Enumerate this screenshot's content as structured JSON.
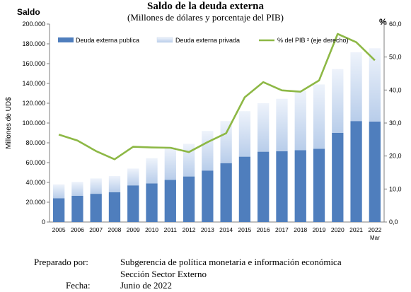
{
  "chart_data": {
    "type": "bar",
    "title": "Saldo de la deuda externa",
    "subtitle": "(Millones  de dólares y porcentaje del PIB)",
    "corner_label": "Saldo",
    "ylabel": "Millones de UD$",
    "y2label": "%",
    "categories": [
      "2005",
      "2006",
      "2007",
      "2008",
      "2009",
      "2010",
      "2011",
      "2012",
      "2013",
      "2014",
      "2015",
      "2016",
      "2017",
      "2018",
      "2019",
      "2020",
      "2021",
      "2022"
    ],
    "last_category_sublabel": "Mar",
    "ylim": [
      0,
      200000
    ],
    "yticks": [
      "0",
      "20.000",
      "40.000",
      "60.000",
      "80.000",
      "100.000",
      "120.000",
      "140.000",
      "160.000",
      "180.000",
      "200.000"
    ],
    "y2lim": [
      0,
      60
    ],
    "y2ticks": [
      "0,0",
      "10,0",
      "20,0",
      "30,0",
      "40,0",
      "50,0",
      "60,0"
    ],
    "grid": false,
    "legend_position": "top",
    "stacked": true,
    "series": [
      {
        "name": "Deuda externa publica",
        "kind": "bar",
        "axis": "left",
        "color": "#4f7ebd",
        "values": [
          24000,
          26500,
          28500,
          30000,
          37000,
          39000,
          42500,
          46000,
          52000,
          59500,
          66000,
          71000,
          71500,
          72500,
          74000,
          90000,
          102000,
          101500
        ]
      },
      {
        "name": "Deuda externa privada",
        "kind": "bar",
        "axis": "left",
        "color": "#b8cdea",
        "values": [
          14000,
          14000,
          15500,
          16500,
          17000,
          25500,
          33000,
          33000,
          40000,
          42500,
          46000,
          49000,
          53000,
          60000,
          65000,
          64500,
          69500,
          74000
        ]
      },
      {
        "name": "% del PIB ² (eje derecho)",
        "kind": "line",
        "axis": "right",
        "color": "#8db845",
        "values": [
          26.5,
          24.7,
          21.5,
          19.0,
          22.8,
          22.6,
          22.5,
          21.2,
          24.2,
          26.9,
          37.8,
          42.4,
          39.9,
          39.5,
          42.9,
          57.0,
          54.5,
          49.0
        ]
      }
    ]
  },
  "footer": {
    "prepared_label": "Preparado por:",
    "prepared_line1": "Subgerencia de política monetaria e información económica",
    "prepared_line2": "Sección Sector Externo",
    "date_label": "Fecha:",
    "date_value": "Junio de 2022"
  }
}
